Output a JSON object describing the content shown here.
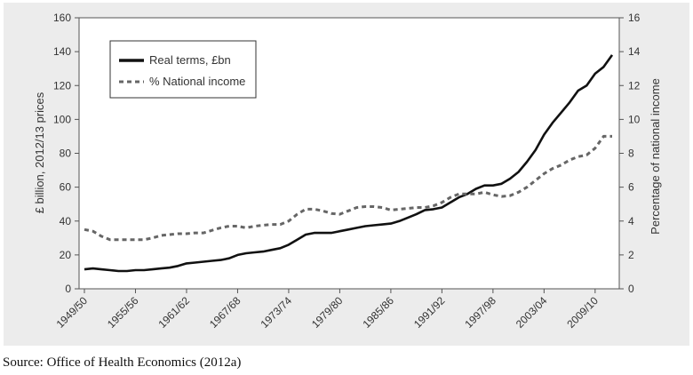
{
  "source": "Source: Office of Health Economics (2012a)",
  "chart_data": {
    "type": "line",
    "title": "",
    "xlabel": "",
    "ylabel_left": "£ billion, 2012/13 prices",
    "ylabel_right": "Percentage of national income",
    "ylim_left": [
      0,
      160
    ],
    "ylim_right": [
      0,
      16
    ],
    "yticks_left": [
      "0",
      "20",
      "40",
      "60",
      "80",
      "100",
      "120",
      "140",
      "160"
    ],
    "yticks_right": [
      "0",
      "2",
      "4",
      "6",
      "8",
      "10",
      "12",
      "14",
      "16"
    ],
    "xticks": [
      "1949/50",
      "1955/56",
      "1961/62",
      "1967/68",
      "1973/74",
      "1979/80",
      "1985/86",
      "1991/92",
      "1997/98",
      "2003/04",
      "2009/10"
    ],
    "grid": false,
    "legend_position": "top-left",
    "series": [
      {
        "name": "Real terms, £bn",
        "axis": "left",
        "style": "solid",
        "color": "#111111",
        "x": [
          1949,
          1950,
          1951,
          1952,
          1953,
          1954,
          1955,
          1956,
          1957,
          1958,
          1959,
          1960,
          1961,
          1962,
          1963,
          1964,
          1965,
          1966,
          1967,
          1968,
          1969,
          1970,
          1971,
          1972,
          1973,
          1974,
          1975,
          1976,
          1977,
          1978,
          1979,
          1980,
          1981,
          1982,
          1983,
          1984,
          1985,
          1986,
          1987,
          1988,
          1989,
          1990,
          1991,
          1992,
          1993,
          1994,
          1995,
          1996,
          1997,
          1998,
          1999,
          2000,
          2001,
          2002,
          2003,
          2004,
          2005,
          2006,
          2007,
          2008,
          2009,
          2010,
          2011
        ],
        "values": [
          11.5,
          12,
          11.5,
          11,
          10.5,
          10.5,
          11,
          11,
          11.5,
          12,
          12.5,
          13.5,
          15,
          15.5,
          16,
          16.5,
          17,
          18,
          20,
          21,
          21.5,
          22,
          23,
          24,
          26,
          29,
          32,
          33,
          33,
          33,
          34,
          35,
          36,
          37,
          37.5,
          38,
          38.5,
          40,
          42,
          44,
          46.5,
          47,
          48,
          51,
          54,
          56,
          59,
          61,
          61,
          62,
          65,
          69,
          75,
          82,
          91,
          98,
          104,
          110,
          117,
          120,
          127,
          131,
          138
        ]
      },
      {
        "name": "% National income",
        "axis": "right",
        "style": "dashed",
        "color": "#666666",
        "x": [
          1949,
          1950,
          1951,
          1952,
          1953,
          1954,
          1955,
          1956,
          1957,
          1958,
          1959,
          1960,
          1961,
          1962,
          1963,
          1964,
          1965,
          1966,
          1967,
          1968,
          1969,
          1970,
          1971,
          1972,
          1973,
          1974,
          1975,
          1976,
          1977,
          1978,
          1979,
          1980,
          1981,
          1982,
          1983,
          1984,
          1985,
          1986,
          1987,
          1988,
          1989,
          1990,
          1991,
          1992,
          1993,
          1994,
          1995,
          1996,
          1997,
          1998,
          1999,
          2000,
          2001,
          2002,
          2003,
          2004,
          2005,
          2006,
          2007,
          2008,
          2009,
          2010,
          2011
        ],
        "values": [
          3.5,
          3.4,
          3.1,
          2.9,
          2.9,
          2.9,
          2.9,
          2.9,
          3.0,
          3.15,
          3.2,
          3.25,
          3.25,
          3.3,
          3.3,
          3.45,
          3.6,
          3.7,
          3.7,
          3.6,
          3.7,
          3.75,
          3.8,
          3.8,
          4.0,
          4.4,
          4.7,
          4.7,
          4.6,
          4.45,
          4.4,
          4.6,
          4.8,
          4.85,
          4.85,
          4.8,
          4.65,
          4.7,
          4.75,
          4.8,
          4.8,
          4.9,
          5.1,
          5.4,
          5.6,
          5.6,
          5.6,
          5.7,
          5.55,
          5.45,
          5.5,
          5.7,
          6.0,
          6.4,
          6.8,
          7.1,
          7.3,
          7.6,
          7.8,
          7.9,
          8.3,
          9.0,
          9.0
        ]
      }
    ]
  }
}
